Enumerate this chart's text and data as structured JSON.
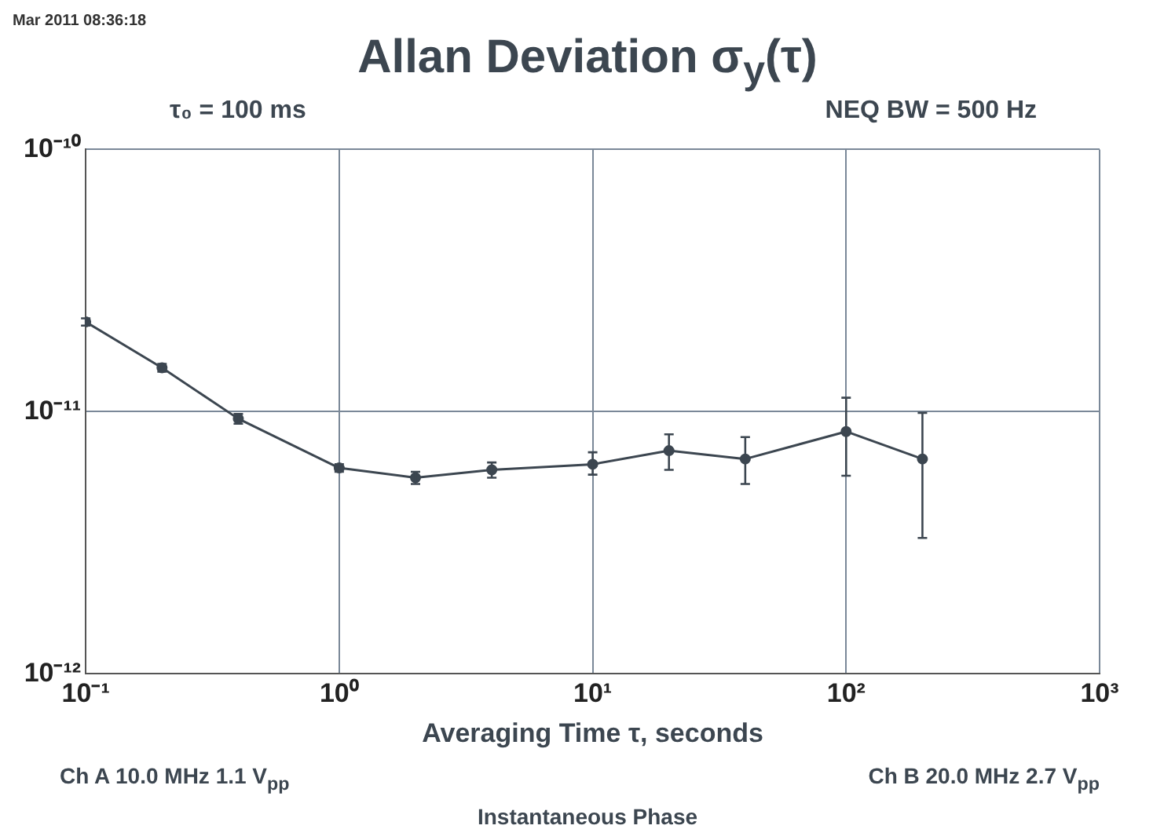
{
  "chart_data": {
    "type": "line",
    "title": "Allan Deviation σ$_{y}$(τ)",
    "xlabel": "Averaging Time τ, seconds",
    "annotations": [
      "Mar 2011 08:36:18",
      "τ₀ = 100 ms",
      "NEQ BW = 500 Hz",
      "Ch A 10.0 MHz 1.1 V$_{pp}$",
      "Ch B 20.0 MHz 2.7 V$_{pp}$",
      "Instantaneous Phase"
    ],
    "x": [
      0.1,
      0.2,
      0.4,
      1,
      2,
      4,
      10,
      20,
      40,
      100,
      200
    ],
    "series": [
      {
        "color": "#3c4650",
        "values": [
          2.2e-11,
          1.47e-11,
          9.4e-12,
          6.1e-12,
          5.6e-12,
          6e-12,
          6.3e-12,
          7.1e-12,
          6.6e-12,
          8.4e-12,
          6.6e-12
        ],
        "errors": [
          [
            2.13e-11,
            2.27e-11
          ],
          [
            1.42e-11,
            1.52e-11
          ],
          [
            9e-12,
            9.8e-12
          ],
          [
            5.9e-12,
            6.3e-12
          ],
          [
            5.3e-12,
            5.9e-12
          ],
          [
            5.6e-12,
            6.4e-12
          ],
          [
            5.75e-12,
            7e-12
          ],
          [
            6e-12,
            8.2e-12
          ],
          [
            5.3e-12,
            8e-12
          ],
          [
            5.7e-12,
            1.13e-11
          ],
          [
            3.3e-12,
            9.9e-12
          ]
        ]
      }
    ],
    "log": "xy",
    "xlim": [
      0.1,
      1000
    ],
    "ylim": [
      1e-12,
      1e-10
    ],
    "xticks": [
      {
        "value": 0.1,
        "label": "10⁻¹"
      },
      {
        "value": 1,
        "label": "10⁰"
      },
      {
        "value": 10,
        "label": "10¹"
      },
      {
        "value": 100,
        "label": "10²"
      },
      {
        "value": 1000,
        "label": "10³"
      }
    ],
    "yticks": [
      {
        "value": 1e-12,
        "label": "10⁻¹²"
      },
      {
        "value": 1e-11,
        "label": "10⁻¹¹"
      },
      {
        "value": 1e-10,
        "label": "10⁻¹⁰"
      }
    ],
    "grid": true,
    "legend": false,
    "marker": "circle",
    "line_style": "solid"
  }
}
